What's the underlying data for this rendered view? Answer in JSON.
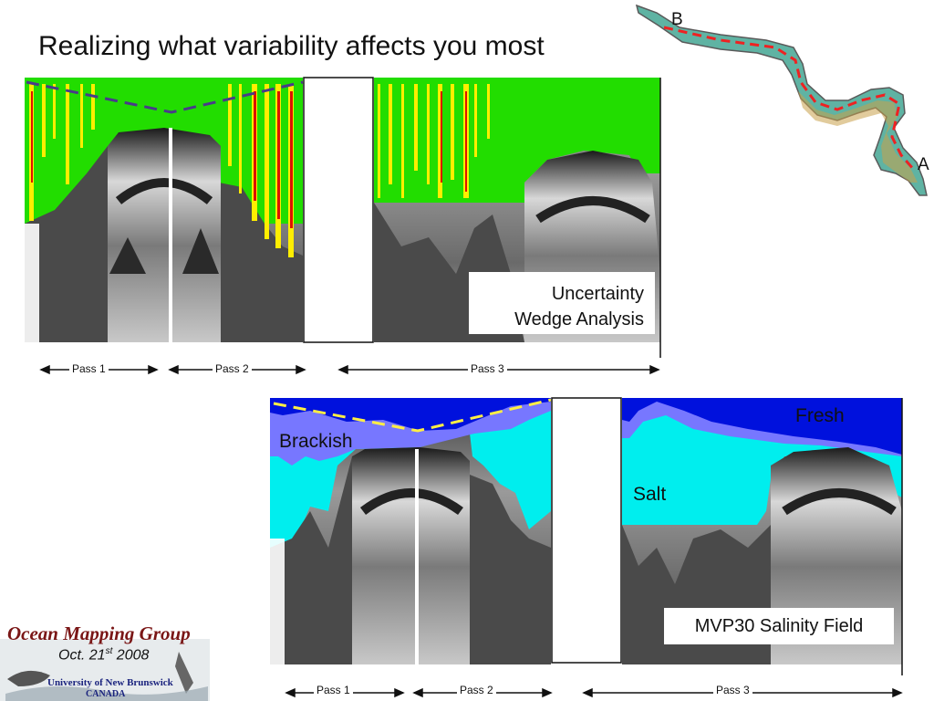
{
  "slide": {
    "title": "Realizing what variability affects you most"
  },
  "map": {
    "label_b": "B",
    "label_a": "A"
  },
  "top_panel": {
    "annotation_line1": "Uncertainty",
    "annotation_line2": "Wedge Analysis",
    "passes": [
      "Pass 1",
      "Pass 2",
      "Pass 3"
    ]
  },
  "bottom_panel": {
    "annotation": "MVP30 Salinity Field",
    "zone_brackish": "Brackish",
    "zone_salt": "Salt",
    "zone_fresh": "Fresh",
    "passes": [
      "Pass 1",
      "Pass 2",
      "Pass 3"
    ]
  },
  "logo": {
    "group_name": "Ocean Mapping Group",
    "date_prefix": "Oct. 21",
    "date_sup": "st",
    "date_year": " 2008",
    "university": "University of New Brunswick",
    "country": "CANADA"
  },
  "colors": {
    "uncertainty_green": "#22dd00",
    "uncertainty_yellow": "#ffee00",
    "uncertainty_red": "#dd1100",
    "salinity_fresh": "#0011dd",
    "salinity_brackish": "#7777ff",
    "salinity_salt": "#00eeee",
    "wedge_top": "#4a3a8a",
    "wedge_bottom": "#ffee44",
    "track_line": "#ee2222"
  }
}
